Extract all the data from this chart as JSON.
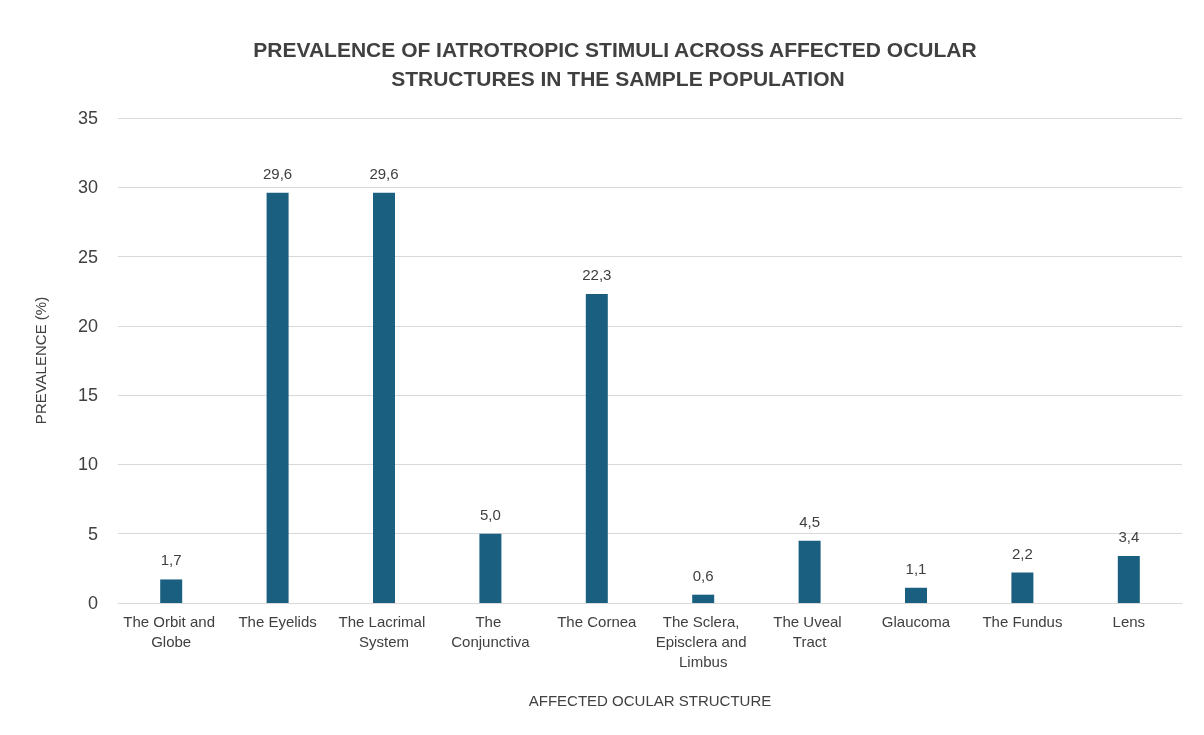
{
  "chart_data": {
    "type": "bar",
    "title": "PREVALENCE OF IATROTROPIC STIMULI ACROSS AFFECTED OCULAR STRUCTURES IN THE SAMPLE POPULATION",
    "xlabel": "AFFECTED OCULAR STRUCTURE",
    "ylabel": "PREVALENCE (%)",
    "categories": [
      "The Orbit and Globe",
      "The Eyelids",
      "The Lacrimal System",
      "The Conjunctiva",
      "The Cornea",
      "The Sclera, Episclera and Limbus",
      "The Uveal Tract",
      "Glaucoma",
      "The Fundus",
      "Lens"
    ],
    "values": [
      1.7,
      29.6,
      29.6,
      5.0,
      22.3,
      0.6,
      4.5,
      1.1,
      2.2,
      3.4
    ],
    "value_labels": [
      "1,7",
      "29,6",
      "29,6",
      "5,0",
      "22,3",
      "0,6",
      "4,5",
      "1,1",
      "2,2",
      "3,4"
    ],
    "color": "#1a5f80",
    "ylim": [
      0,
      35
    ],
    "yticks": [
      0,
      5,
      10,
      15,
      20,
      25,
      30,
      35
    ],
    "grid": "y"
  }
}
